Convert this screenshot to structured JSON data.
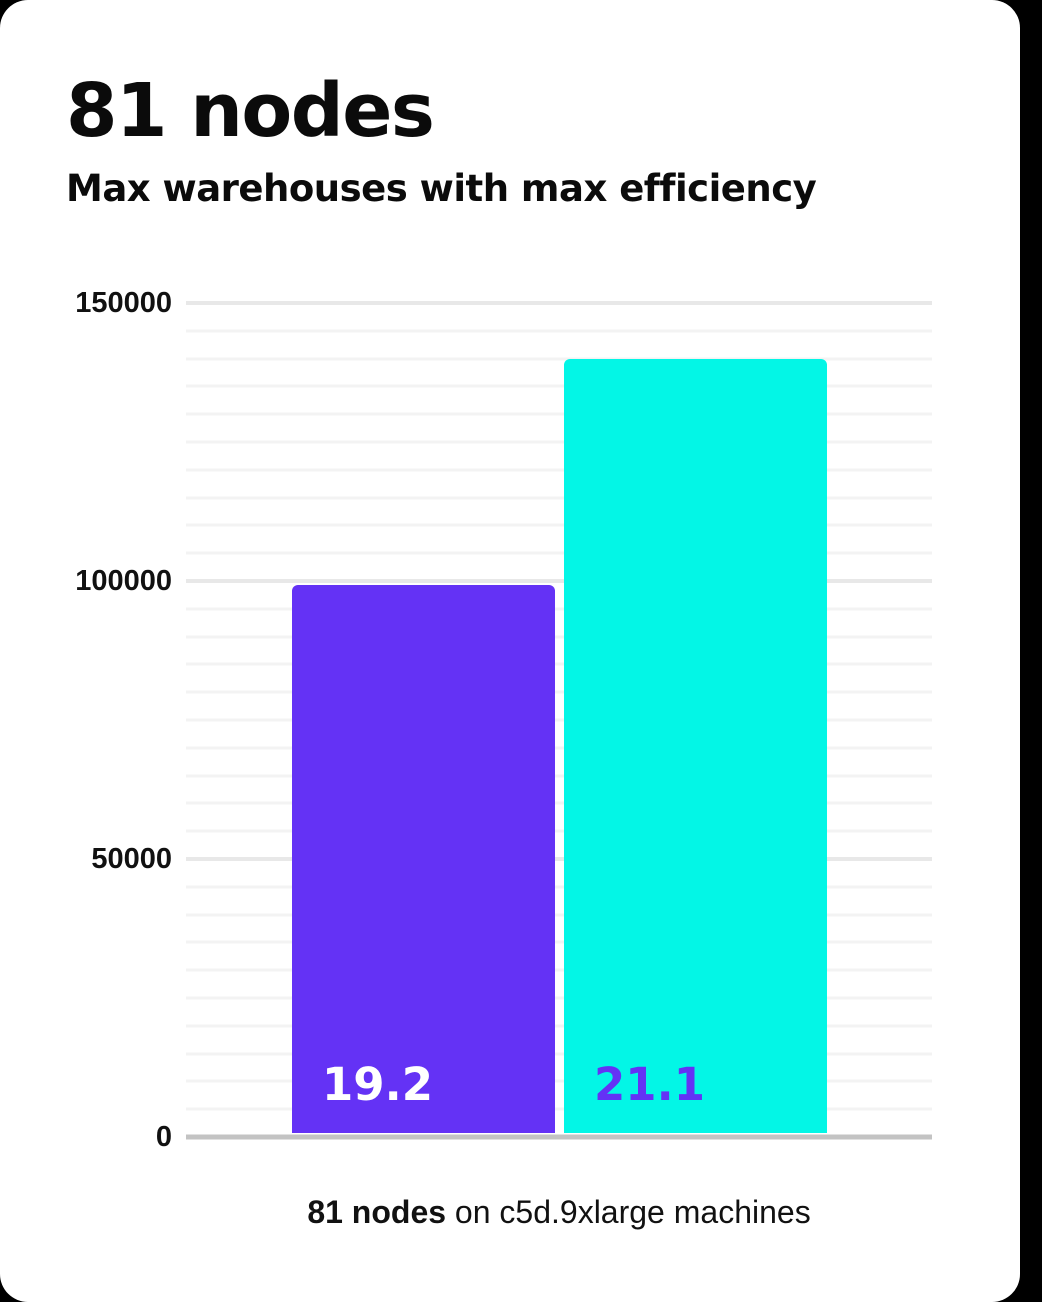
{
  "page": {
    "background_color": "#000000",
    "card_color": "#ffffff"
  },
  "header": {
    "title": "81 nodes",
    "subtitle": "Max warehouses with max efficiency"
  },
  "caption": {
    "bold": "81 nodes",
    "rest": " on c5d.9xlarge machines"
  },
  "chart_data": {
    "type": "bar",
    "title": "81 nodes",
    "subtitle": "Max warehouses with max efficiency",
    "categories": [
      "19.2",
      "21.1"
    ],
    "values": [
      99300,
      139900
    ],
    "bar_labels": [
      "19.2",
      "21.1"
    ],
    "bar_colors": [
      "#6432f5",
      "#03f6e6"
    ],
    "bar_label_colors": [
      "#ffffff",
      "#6432f5"
    ],
    "xlabel": "",
    "ylabel": "",
    "ylim": [
      0,
      150000
    ],
    "yticks": [
      0,
      50000,
      100000,
      150000
    ],
    "minor_grid_step": 5000,
    "major_grid_step": 50000,
    "grid": true,
    "legend": "none",
    "caption": "81 nodes on c5d.9xlarge machines",
    "colors": {
      "minor_grid": "#f3f3f3",
      "major_grid": "#e8e8e8",
      "axis_line": "#c3c3c3",
      "text": "#0b0b0b"
    }
  }
}
